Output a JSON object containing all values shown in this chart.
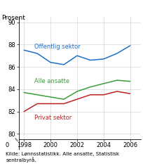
{
  "years": [
    1998,
    1999,
    2000,
    2001,
    2002,
    2003,
    2004,
    2005,
    2006
  ],
  "offentlig": [
    87.5,
    87.2,
    86.4,
    86.2,
    87.0,
    86.6,
    86.7,
    87.2,
    87.9
  ],
  "alle_ansatte": [
    83.7,
    83.5,
    83.3,
    83.1,
    83.8,
    84.2,
    84.5,
    84.8,
    84.7
  ],
  "privat": [
    82.0,
    82.7,
    82.7,
    82.7,
    83.1,
    83.5,
    83.5,
    83.8,
    83.6
  ],
  "colors": {
    "offentlig": "#1f6fcc",
    "alle_ansatte": "#3a9e3a",
    "privat": "#bb2222"
  },
  "labels": {
    "offentlig": "Offentlig sektor",
    "alle_ansatte": "Alle ansatte",
    "privat": "Privat sektor"
  },
  "ylabel": "Prosent",
  "ylim": [
    79.5,
    90.5
  ],
  "yticks": [
    80,
    82,
    84,
    86,
    88,
    90
  ],
  "xlim": [
    1997.6,
    2006.8
  ],
  "xticks": [
    1998,
    2000,
    2002,
    2004,
    2006
  ],
  "source_line1": "Kilde: Lønnsstatistikk. Alle ansatte, Statistisk",
  "source_line2": "sentralbyrå."
}
